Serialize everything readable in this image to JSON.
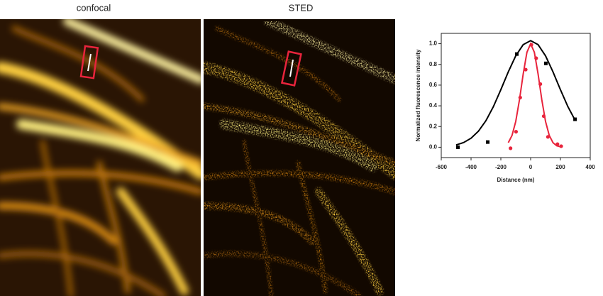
{
  "panels": [
    {
      "label": "confocal"
    },
    {
      "label": "STED"
    }
  ],
  "chart_data": {
    "type": "scatter",
    "x_label": "Distance (nm)",
    "y_label": "Normalized fluorescence intensity",
    "xlim": [
      -600,
      400
    ],
    "xticks": [
      -600,
      -400,
      -200,
      0,
      200,
      400
    ],
    "ylim": [
      -0.1,
      1.1
    ],
    "yticks": [
      {
        "value": 0,
        "label": "0.0"
      },
      {
        "value": 0.2,
        "label": "0.2"
      },
      {
        "value": 0.4,
        "label": "0.4"
      },
      {
        "value": 0.6,
        "label": "0.6"
      },
      {
        "value": 0.8,
        "label": "0.8"
      },
      {
        "value": 1,
        "label": "1.0"
      }
    ],
    "series": [
      {
        "color": "#000000",
        "style": "line",
        "x": [
          -500,
          -450,
          -400,
          -350,
          -300,
          -250,
          -200,
          -150,
          -100,
          -50,
          0,
          50,
          100,
          150,
          200,
          250,
          300
        ],
        "values": [
          0.022,
          0.045,
          0.087,
          0.156,
          0.257,
          0.392,
          0.556,
          0.728,
          0.883,
          0.991,
          1.03,
          0.991,
          0.883,
          0.728,
          0.556,
          0.392,
          0.257
        ]
      },
      {
        "color": "#e8243c",
        "style": "line",
        "x": [
          -150,
          -125,
          -100,
          -75,
          -50,
          -25,
          0,
          25,
          50,
          75,
          100,
          125,
          150,
          175,
          200
        ],
        "values": [
          0.044,
          0.114,
          0.249,
          0.458,
          0.707,
          0.917,
          1.0,
          0.917,
          0.707,
          0.458,
          0.249,
          0.114,
          0.044,
          0.014,
          0.004
        ]
      },
      {
        "color": "#000000",
        "style": "square",
        "x": [
          -488,
          -288,
          -93,
          102,
          298
        ],
        "values": [
          0.0,
          0.05,
          0.9,
          0.81,
          0.27
        ]
      },
      {
        "color": "#e8243c",
        "style": "dot",
        "x": [
          -135,
          -98,
          -70,
          -33,
          5,
          37,
          65,
          88,
          116,
          180,
          205
        ],
        "values": [
          -0.01,
          0.15,
          0.48,
          0.75,
          0.99,
          0.86,
          0.61,
          0.3,
          0.1,
          0.03,
          0.01
        ]
      }
    ]
  }
}
